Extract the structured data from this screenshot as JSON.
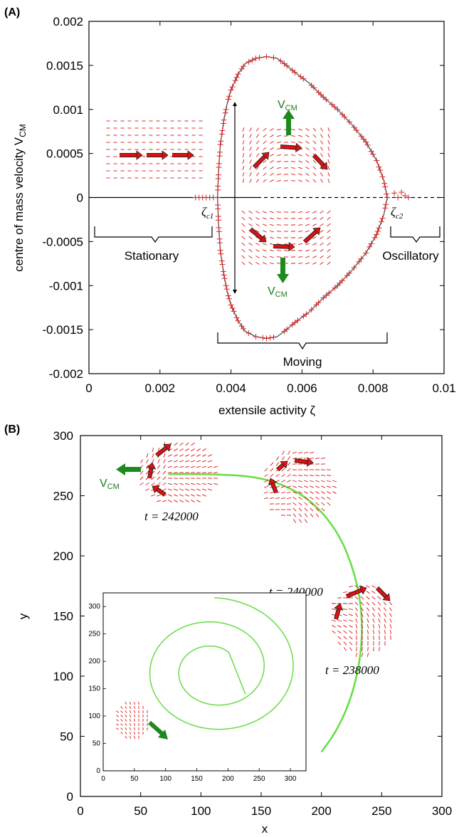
{
  "panel_a": {
    "label": "(A)",
    "regions": {
      "stationary": "Stationary",
      "moving": "Moving",
      "oscillatory": "Oscillatory"
    },
    "zeta_c1": "ζ",
    "zeta_c1_sub": "c1",
    "zeta_c2": "ζ",
    "zeta_c2_sub": "c2",
    "vcm_up": "V",
    "vcm_up_sub": "CM",
    "vcm_down": "V",
    "vcm_down_sub": "CM"
  },
  "panel_b": {
    "label": "(B)",
    "time_labels": [
      "t = 242000",
      "t = 240000",
      "t = 238000"
    ],
    "vcm": "V",
    "vcm_sub": "CM"
  },
  "colors": {
    "marker": "#d62728",
    "arrow": "#e01010",
    "green": "#1e8a1e",
    "trajectory": "#66dd44",
    "curve": "#555555"
  },
  "chart_data": [
    {
      "type": "scatter",
      "title": "",
      "xlabel": "extensile activity ζ",
      "ylabel": "centre of mass velocity V",
      "ylabel_sub": "CM",
      "xlim": [
        0,
        0.01
      ],
      "ylim": [
        -0.002,
        0.002
      ],
      "xticks": [
        "0",
        "0.002",
        "0.004",
        "0.006",
        "0.008",
        "0.01"
      ],
      "yticks": [
        "-0.002",
        "-0.0015",
        "-0.001",
        "-0.0005",
        "0",
        "0.0005",
        "0.001",
        "0.0015",
        "0.002"
      ],
      "grid": false,
      "series": [
        {
          "values_upper": [
            [
              0.00362,
              0.0
            ],
            [
              0.00365,
              0.0003
            ],
            [
              0.0037,
              0.0006
            ],
            [
              0.0038,
              0.00088
            ],
            [
              0.0039,
              0.00108
            ],
            [
              0.004,
              0.00122
            ],
            [
              0.0042,
              0.0014
            ],
            [
              0.0044,
              0.00152
            ],
            [
              0.0047,
              0.00158
            ],
            [
              0.005,
              0.0016
            ],
            [
              0.0053,
              0.00158
            ],
            [
              0.0055,
              0.00152
            ],
            [
              0.0058,
              0.00142
            ],
            [
              0.0062,
              0.0013
            ],
            [
              0.0066,
              0.00114
            ],
            [
              0.007,
              0.001
            ],
            [
              0.0074,
              0.00083
            ],
            [
              0.0078,
              0.00063
            ],
            [
              0.0081,
              0.00042
            ],
            [
              0.0083,
              0.0002
            ],
            [
              0.0084,
              0.0
            ]
          ],
          "values_lower": [
            [
              0.00362,
              0.0
            ],
            [
              0.00365,
              -0.0003
            ],
            [
              0.0037,
              -0.0006
            ],
            [
              0.0038,
              -0.00088
            ],
            [
              0.0039,
              -0.00108
            ],
            [
              0.004,
              -0.00122
            ],
            [
              0.0042,
              -0.0014
            ],
            [
              0.0044,
              -0.00152
            ],
            [
              0.0047,
              -0.00158
            ],
            [
              0.005,
              -0.0016
            ],
            [
              0.0053,
              -0.00158
            ],
            [
              0.0055,
              -0.00152
            ],
            [
              0.0058,
              -0.00142
            ],
            [
              0.0062,
              -0.0013
            ],
            [
              0.0066,
              -0.00114
            ],
            [
              0.007,
              -0.001
            ],
            [
              0.0074,
              -0.00083
            ],
            [
              0.0078,
              -0.00063
            ],
            [
              0.0081,
              -0.00042
            ],
            [
              0.0083,
              -0.0002
            ],
            [
              0.0084,
              0.0
            ]
          ],
          "stationary": [
            [
              0.003,
              0.0
            ],
            [
              0.0031,
              0.0
            ],
            [
              0.0032,
              0.0
            ],
            [
              0.0033,
              0.0
            ],
            [
              0.0034,
              0.0
            ],
            [
              0.0035,
              0.0
            ]
          ],
          "oscillatory": [
            [
              0.0086,
              5e-05
            ],
            [
              0.0087,
              0.0
            ],
            [
              0.0088,
              6e-05
            ],
            [
              0.0089,
              2e-05
            ],
            [
              0.009,
              0.0
            ]
          ]
        }
      ]
    },
    {
      "type": "line",
      "title": "",
      "xlabel": "x",
      "ylabel": "y",
      "xlim": [
        0,
        300
      ],
      "ylim": [
        0,
        300
      ],
      "xticks": [
        "0",
        "50",
        "100",
        "150",
        "200",
        "250",
        "300"
      ],
      "yticks": [
        "0",
        "50",
        "100",
        "150",
        "200",
        "250",
        "300"
      ],
      "series": [
        {
          "values": [
            [
              73,
              268
            ],
            [
              110,
              268
            ],
            [
              145,
              266
            ],
            [
              172,
              258
            ],
            [
              195,
              243
            ],
            [
              215,
              218
            ],
            [
              228,
              185
            ],
            [
              234,
              152
            ],
            [
              233,
              117
            ],
            [
              225,
              82
            ],
            [
              213,
              55
            ],
            [
              200,
              37
            ]
          ]
        }
      ]
    },
    {
      "type": "line",
      "title": "",
      "xlim": [
        0,
        325
      ],
      "ylim": [
        0,
        325
      ],
      "xticks": [
        "0",
        "50",
        "100",
        "150",
        "200",
        "250",
        "300"
      ],
      "yticks": [
        "0",
        "50",
        "100",
        "150",
        "200",
        "250",
        "300"
      ],
      "series": [
        {
          "values_spiral": true
        }
      ]
    }
  ]
}
